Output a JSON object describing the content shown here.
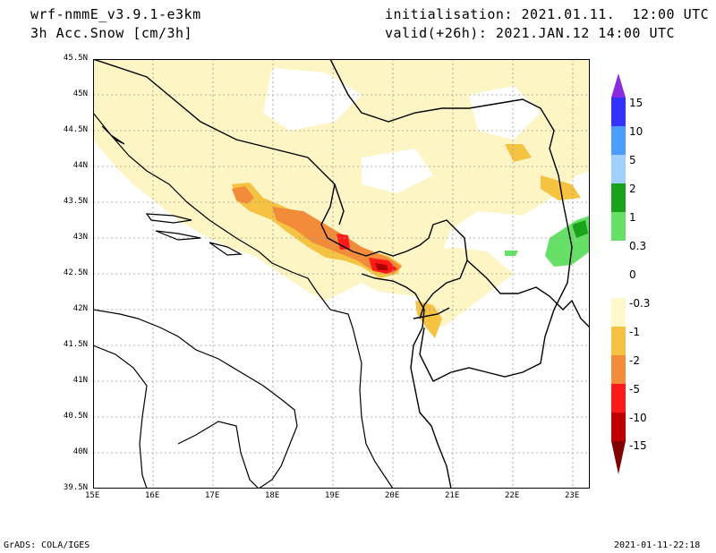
{
  "header": {
    "model": "wrf-nmmE_v3.9.1-e3km",
    "field": "3h Acc.Snow [cm/3h]",
    "init": "initialisation: 2021.01.11.  12:00 UTC",
    "valid": "valid(+26h): 2021.JAN.12 14:00 UTC"
  },
  "footer": {
    "credit": "GrADS: COLA/IGES",
    "timestamp": "2021-01-11-22:18"
  },
  "map": {
    "lat_labels": [
      "45.5N",
      "45N",
      "44.5N",
      "44N",
      "43.5N",
      "43N",
      "42.5N",
      "42N",
      "41.5N",
      "41N",
      "40.5N",
      "40N",
      "39.5N"
    ],
    "lon_labels": [
      "15E",
      "16E",
      "17E",
      "18E",
      "19E",
      "20E",
      "21E",
      "22E",
      "23E"
    ]
  },
  "colorbar": {
    "labels": [
      "15",
      "10",
      "5",
      "2",
      "1",
      "0.3",
      "0",
      "-0.3",
      "-1",
      "-2",
      "-5",
      "-10",
      "-15"
    ],
    "colors": [
      "#8a2be2",
      "#3333ff",
      "#4d9cff",
      "#9fd0ff",
      "#1aa31a",
      "#66e066",
      "#ffffff",
      "#fff8c8",
      "#f5c242",
      "#f28c3a",
      "#ff1a1a",
      "#c00000",
      "#800000"
    ]
  },
  "colors": {
    "light_snow": "#fdf5c4",
    "moderate": "#f5c242",
    "heavy": "#f28c3a",
    "very_heavy": "#ff1a1a",
    "extreme": "#b00000",
    "rain_light": "#66e066",
    "rain_mod": "#1aa31a"
  }
}
